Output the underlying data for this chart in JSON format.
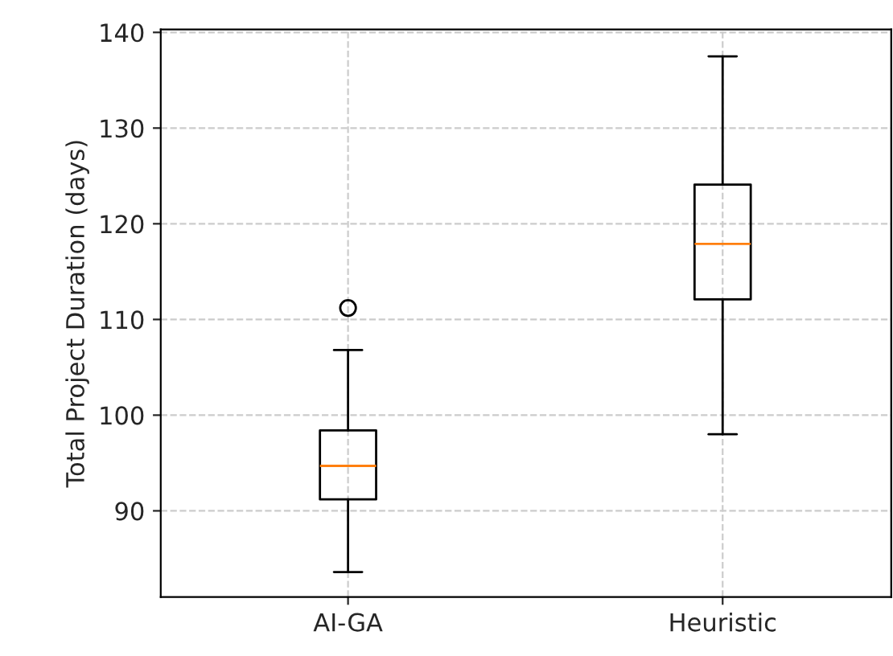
{
  "chart_data": {
    "type": "box",
    "ylabel": "Total Project Duration (days)",
    "categories": [
      "AI-GA",
      "Heuristic"
    ],
    "boxes": [
      {
        "low": 83.6,
        "q1": 91.2,
        "median": 94.7,
        "q3": 98.4,
        "high": 106.8,
        "outliers": [
          111.2
        ]
      },
      {
        "low": 98.0,
        "q1": 112.1,
        "median": 117.9,
        "q3": 124.1,
        "high": 137.5
      }
    ],
    "ylim": [
      81,
      140.3
    ],
    "yticks": [
      90,
      100,
      110,
      120,
      130,
      140
    ],
    "grid": true
  }
}
